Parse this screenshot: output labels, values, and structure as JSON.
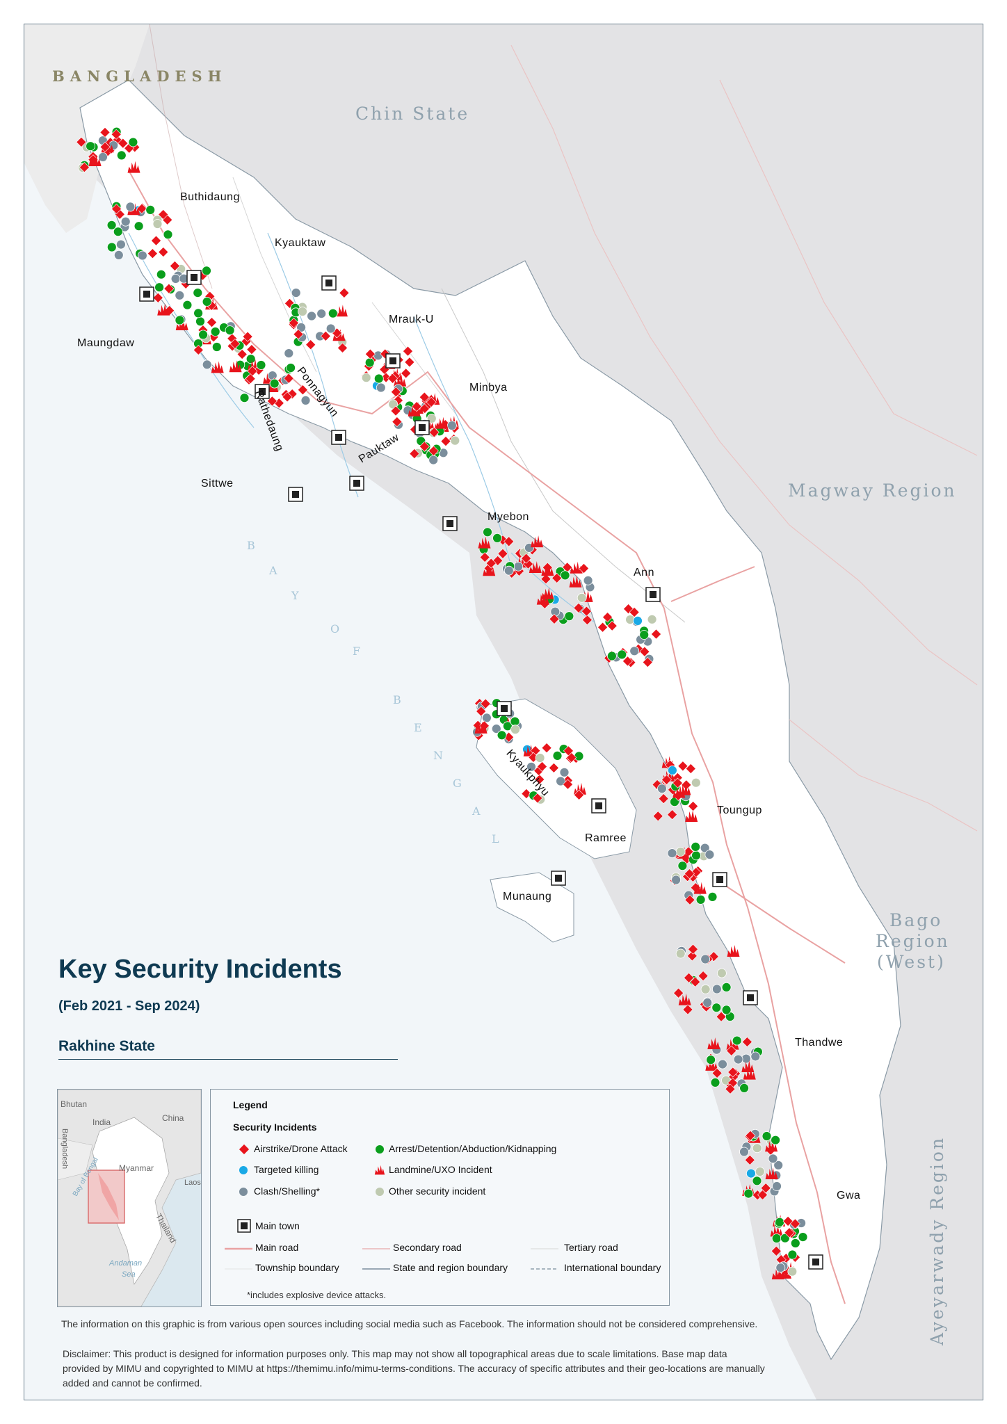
{
  "title": "Key Security Incidents",
  "date_range": "(Feb 2021 - Sep 2024)",
  "state_name": "Rakhine State",
  "countries": {
    "bangladesh": "BANGLADESH"
  },
  "regions": {
    "chin": "Chin State",
    "magway": "Magway Region",
    "bago_line1": "Bago",
    "bago_line2": "Region",
    "bago_line3": "(West)",
    "ayeyarwady": "Ayeyarwady Region"
  },
  "sea": {
    "bay_letters": [
      "B",
      "A",
      "Y",
      "O",
      "F",
      "B",
      "E",
      "N",
      "G",
      "A",
      "L"
    ]
  },
  "towns": {
    "buthidaung": "Buthidaung",
    "kyauktaw": "Kyauktaw",
    "maungdaw": "Maungdaw",
    "mrauk_u": "Mrauk-U",
    "rathedaung": "Rathedaung",
    "ponnagyun": "Ponnagyun",
    "minbya": "Minbya",
    "pauktaw": "Pauktaw",
    "sittwe": "Sittwe",
    "myebon": "Myebon",
    "ann": "Ann",
    "kyaukphyu": "Kyaukphyu",
    "toungup": "Toungup",
    "ramree": "Ramree",
    "munaung": "Munaung",
    "thandwe": "Thandwe",
    "gwa": "Gwa"
  },
  "inset": {
    "bhutan": "Bhutan",
    "india": "India",
    "china": "China",
    "bangladesh": "Bangladesh",
    "myanmar": "Myanmar",
    "laos": "Laos",
    "bay_of_bengal": "Bay of Bengal",
    "thailand": "Thailand",
    "andaman_line1": "Andaman",
    "andaman_line2": "Sea"
  },
  "legend": {
    "heading": "Legend",
    "section": "Security Incidents",
    "airstrike": "Airstrike/Drone Attack",
    "arrest": "Arrest/Detention/Abduction/Kidnapping",
    "targeted_killing": "Targeted killing",
    "landmine": "Landmine/UXO Incident",
    "clash": "Clash/Shelling*",
    "other": "Other security incident",
    "main_town": "Main town",
    "main_road": "Main road",
    "secondary_road": "Secondary road",
    "tertiary_road": "Tertiary road",
    "township_boundary": "Township boundary",
    "state_boundary": "State and region boundary",
    "international_boundary": "International boundary",
    "footnote": "*includes explosive device attacks."
  },
  "colors": {
    "airstrike": "#e8141c",
    "arrest": "#0a9e1c",
    "targeted_killing": "#19a9e6",
    "landmine": "#e8141c",
    "clash": "#7b8e9c",
    "other": "#bfcab0",
    "title": "#0f3a52"
  },
  "note": "The information on this graphic is from various open sources including social media such as Facebook. The information should not be considered comprehensive.",
  "disclaimer": "Disclaimer: This product is designed for information purposes only. This map may not show all topographical areas due to scale limitations. Base map data provided by MIMU and copyrighted to MIMU at https://themimu.info/mimu-terms-conditions. The accuracy of specific attributes and their geo-locations are manually added and cannot be confirmed."
}
